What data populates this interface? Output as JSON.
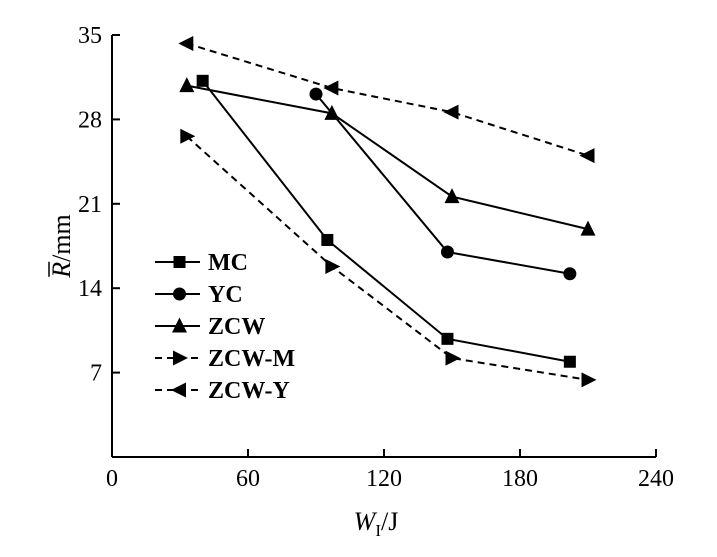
{
  "chart_data": {
    "type": "line",
    "xlabel": "W_I/J",
    "xlabel_main": "W",
    "xlabel_sub": "I",
    "xlabel_unit": "/J",
    "ylabel": "R̄/mm",
    "ylabel_symbol": "R",
    "ylabel_unit": "/mm",
    "xlim": [
      0,
      240
    ],
    "ylim": [
      0,
      35
    ],
    "xticks": [
      0,
      60,
      120,
      180,
      240
    ],
    "yticks": [
      7,
      14,
      21,
      28,
      35
    ],
    "xtick_labels": [
      "0",
      "60",
      "120",
      "180",
      "240"
    ],
    "ytick_labels": [
      "7",
      "14",
      "21",
      "28",
      "35"
    ],
    "grid": false,
    "legend_position": "left",
    "series": [
      {
        "name": "MC",
        "marker": "square",
        "dash": "solid",
        "x": [
          40,
          95,
          148,
          202
        ],
        "y": [
          31.2,
          18.0,
          9.8,
          7.9
        ]
      },
      {
        "name": "YC",
        "marker": "circle",
        "dash": "solid",
        "x": [
          90,
          148,
          202
        ],
        "y": [
          30.1,
          17.0,
          15.2
        ]
      },
      {
        "name": "ZCW",
        "marker": "triangle-up",
        "dash": "solid",
        "x": [
          33,
          97,
          150,
          210
        ],
        "y": [
          30.8,
          28.5,
          21.6,
          18.9
        ]
      },
      {
        "name": "ZCW-M",
        "marker": "triangle-right",
        "dash": "dashed",
        "x": [
          33,
          97,
          150,
          210
        ],
        "y": [
          26.6,
          15.8,
          8.2,
          6.4
        ]
      },
      {
        "name": "ZCW-Y",
        "marker": "triangle-left",
        "dash": "dashed",
        "x": [
          33,
          97,
          150,
          210
        ],
        "y": [
          34.3,
          30.6,
          28.6,
          25.0
        ]
      }
    ]
  }
}
